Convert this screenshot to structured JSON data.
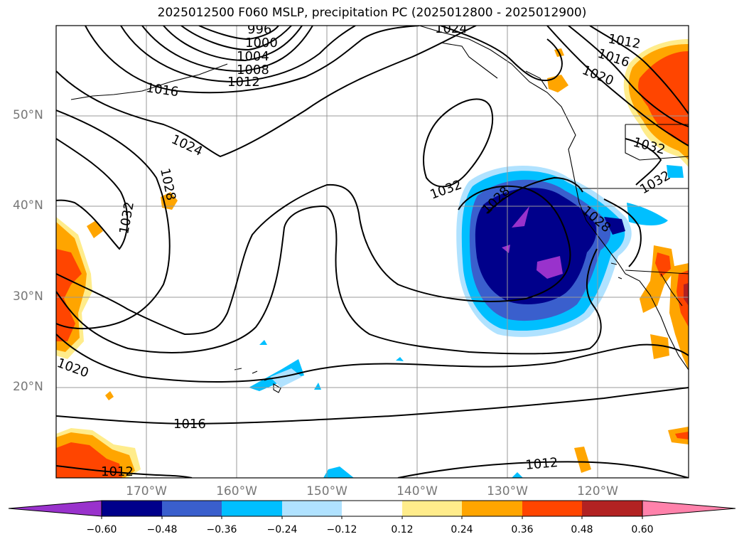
{
  "title": "2025012500 F060 MSLP, precipitation PC (2025012800 - 2025012900)",
  "map": {
    "projection": "PlateCarree",
    "lon_range": [
      "180°W",
      "110°W"
    ],
    "lat_range": [
      "10°N",
      "60°N"
    ],
    "lat_labels": [
      "50°N",
      "40°N",
      "30°N",
      "20°N"
    ],
    "lon_labels": [
      "170°W",
      "160°W",
      "150°W",
      "140°W",
      "130°W",
      "120°W"
    ],
    "grid": true,
    "contour_labels": [
      "996",
      "1000",
      "1004",
      "1008",
      "1012",
      "1016",
      "1024",
      "1028",
      "1032",
      "1032",
      "1028",
      "1020",
      "1016",
      "1012",
      "1020",
      "1016",
      "1012",
      "1012",
      "1032",
      "1032",
      "1028",
      "1024"
    ]
  },
  "colorbar": {
    "ticks": [
      "−0.60",
      "−0.48",
      "−0.36",
      "−0.24",
      "−0.12",
      "0.12",
      "0.24",
      "0.36",
      "0.48",
      "0.60"
    ],
    "colors": [
      "#9932cc",
      "#00008b",
      "#3a5fcd",
      "#00bfff",
      "#b0e2ff",
      "#ffffff",
      "#ffec8b",
      "#ffa500",
      "#ff4500",
      "#b22222",
      "#ff82ab"
    ],
    "extend": "both"
  }
}
